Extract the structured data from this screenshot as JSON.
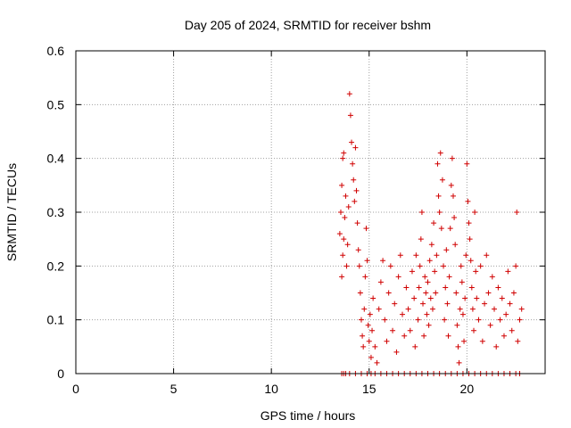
{
  "chart_data": {
    "type": "scatter",
    "title": "Day 205 of 2024, SRMTID for receiver bshm",
    "xlabel": "GPS time / hours",
    "ylabel": "SRMTID / TECUs",
    "xlim": [
      0,
      24
    ],
    "ylim": [
      0,
      0.6
    ],
    "xticks": [
      0,
      5,
      10,
      15,
      20
    ],
    "yticks": [
      0,
      0.1,
      0.2,
      0.3,
      0.4,
      0.5,
      0.6
    ],
    "xtick_labels": [
      "0",
      "5",
      "10",
      "15",
      "20"
    ],
    "ytick_labels": [
      "0",
      "0.1",
      "0.2",
      "0.3",
      "0.4",
      "0.5",
      "0.6"
    ],
    "grid": true,
    "marker": "+",
    "series": [
      {
        "name": "SRMTID",
        "color": "#d00000",
        "points": [
          [
            13.6,
            0.0
          ],
          [
            13.7,
            0.0
          ],
          [
            13.8,
            0.0
          ],
          [
            14.0,
            0.0
          ],
          [
            14.3,
            0.0
          ],
          [
            14.6,
            0.0
          ],
          [
            14.9,
            0.0
          ],
          [
            15.1,
            0.0
          ],
          [
            15.3,
            0.0
          ],
          [
            15.6,
            0.0
          ],
          [
            15.9,
            0.0
          ],
          [
            16.2,
            0.0
          ],
          [
            16.5,
            0.0
          ],
          [
            16.8,
            0.0
          ],
          [
            17.1,
            0.0
          ],
          [
            17.4,
            0.0
          ],
          [
            17.7,
            0.0
          ],
          [
            18.0,
            0.0
          ],
          [
            18.3,
            0.0
          ],
          [
            18.6,
            0.0
          ],
          [
            18.9,
            0.0
          ],
          [
            19.2,
            0.0
          ],
          [
            19.5,
            0.0
          ],
          [
            19.8,
            0.0
          ],
          [
            20.1,
            0.0
          ],
          [
            20.4,
            0.0
          ],
          [
            20.7,
            0.0
          ],
          [
            21.0,
            0.0
          ],
          [
            21.3,
            0.0
          ],
          [
            21.6,
            0.0
          ],
          [
            21.9,
            0.0
          ],
          [
            22.2,
            0.0
          ],
          [
            22.5,
            0.0
          ],
          [
            22.7,
            0.0
          ],
          [
            13.5,
            0.26
          ],
          [
            13.55,
            0.3
          ],
          [
            13.6,
            0.35
          ],
          [
            13.65,
            0.4
          ],
          [
            13.7,
            0.41
          ],
          [
            13.6,
            0.18
          ],
          [
            13.65,
            0.22
          ],
          [
            13.7,
            0.25
          ],
          [
            13.75,
            0.29
          ],
          [
            13.8,
            0.33
          ],
          [
            13.85,
            0.2
          ],
          [
            13.9,
            0.24
          ],
          [
            13.95,
            0.31
          ],
          [
            14.0,
            0.52
          ],
          [
            14.05,
            0.48
          ],
          [
            14.1,
            0.43
          ],
          [
            14.15,
            0.39
          ],
          [
            14.2,
            0.36
          ],
          [
            14.25,
            0.32
          ],
          [
            14.3,
            0.42
          ],
          [
            14.35,
            0.34
          ],
          [
            14.4,
            0.28
          ],
          [
            14.45,
            0.23
          ],
          [
            14.5,
            0.2
          ],
          [
            14.55,
            0.15
          ],
          [
            14.6,
            0.1
          ],
          [
            14.65,
            0.07
          ],
          [
            14.7,
            0.05
          ],
          [
            14.75,
            0.12
          ],
          [
            14.8,
            0.18
          ],
          [
            14.85,
            0.27
          ],
          [
            14.9,
            0.21
          ],
          [
            14.95,
            0.09
          ],
          [
            15.0,
            0.06
          ],
          [
            15.05,
            0.11
          ],
          [
            15.1,
            0.03
          ],
          [
            15.15,
            0.08
          ],
          [
            15.2,
            0.14
          ],
          [
            15.3,
            0.05
          ],
          [
            15.4,
            0.02
          ],
          [
            15.5,
            0.12
          ],
          [
            15.6,
            0.17
          ],
          [
            15.7,
            0.21
          ],
          [
            15.8,
            0.1
          ],
          [
            15.9,
            0.06
          ],
          [
            16.0,
            0.15
          ],
          [
            16.1,
            0.2
          ],
          [
            16.2,
            0.08
          ],
          [
            16.3,
            0.13
          ],
          [
            16.4,
            0.04
          ],
          [
            16.5,
            0.18
          ],
          [
            16.6,
            0.22
          ],
          [
            16.7,
            0.11
          ],
          [
            16.8,
            0.07
          ],
          [
            16.9,
            0.16
          ],
          [
            17.0,
            0.12
          ],
          [
            17.1,
            0.08
          ],
          [
            17.2,
            0.19
          ],
          [
            17.3,
            0.14
          ],
          [
            17.35,
            0.05
          ],
          [
            17.4,
            0.22
          ],
          [
            17.5,
            0.1
          ],
          [
            17.55,
            0.16
          ],
          [
            17.6,
            0.2
          ],
          [
            17.65,
            0.25
          ],
          [
            17.7,
            0.3
          ],
          [
            17.75,
            0.13
          ],
          [
            17.8,
            0.07
          ],
          [
            17.85,
            0.18
          ],
          [
            17.9,
            0.15
          ],
          [
            17.95,
            0.11
          ],
          [
            18.0,
            0.17
          ],
          [
            18.05,
            0.09
          ],
          [
            18.1,
            0.21
          ],
          [
            18.15,
            0.14
          ],
          [
            18.2,
            0.24
          ],
          [
            18.25,
            0.12
          ],
          [
            18.3,
            0.28
          ],
          [
            18.35,
            0.19
          ],
          [
            18.4,
            0.15
          ],
          [
            18.45,
            0.22
          ],
          [
            18.5,
            0.39
          ],
          [
            18.55,
            0.33
          ],
          [
            18.6,
            0.3
          ],
          [
            18.65,
            0.41
          ],
          [
            18.7,
            0.27
          ],
          [
            18.75,
            0.36
          ],
          [
            18.8,
            0.2
          ],
          [
            18.85,
            0.1
          ],
          [
            18.9,
            0.16
          ],
          [
            18.95,
            0.23
          ],
          [
            19.0,
            0.13
          ],
          [
            19.05,
            0.07
          ],
          [
            19.1,
            0.18
          ],
          [
            19.15,
            0.27
          ],
          [
            19.2,
            0.35
          ],
          [
            19.25,
            0.4
          ],
          [
            19.3,
            0.33
          ],
          [
            19.35,
            0.29
          ],
          [
            19.4,
            0.24
          ],
          [
            19.45,
            0.15
          ],
          [
            19.5,
            0.09
          ],
          [
            19.55,
            0.05
          ],
          [
            19.6,
            0.02
          ],
          [
            19.65,
            0.12
          ],
          [
            19.7,
            0.2
          ],
          [
            19.75,
            0.17
          ],
          [
            19.8,
            0.11
          ],
          [
            19.85,
            0.06
          ],
          [
            19.9,
            0.14
          ],
          [
            19.95,
            0.22
          ],
          [
            20.0,
            0.39
          ],
          [
            20.05,
            0.32
          ],
          [
            20.1,
            0.28
          ],
          [
            20.15,
            0.25
          ],
          [
            20.2,
            0.21
          ],
          [
            20.25,
            0.16
          ],
          [
            20.3,
            0.12
          ],
          [
            20.35,
            0.08
          ],
          [
            20.4,
            0.3
          ],
          [
            20.45,
            0.19
          ],
          [
            20.5,
            0.14
          ],
          [
            20.6,
            0.1
          ],
          [
            20.7,
            0.2
          ],
          [
            20.8,
            0.06
          ],
          [
            20.9,
            0.13
          ],
          [
            21.0,
            0.22
          ],
          [
            21.1,
            0.15
          ],
          [
            21.2,
            0.09
          ],
          [
            21.3,
            0.18
          ],
          [
            21.4,
            0.12
          ],
          [
            21.5,
            0.05
          ],
          [
            21.6,
            0.16
          ],
          [
            21.7,
            0.1
          ],
          [
            21.8,
            0.14
          ],
          [
            21.9,
            0.07
          ],
          [
            22.0,
            0.11
          ],
          [
            22.1,
            0.19
          ],
          [
            22.2,
            0.13
          ],
          [
            22.3,
            0.08
          ],
          [
            22.4,
            0.15
          ],
          [
            22.5,
            0.2
          ],
          [
            22.55,
            0.3
          ],
          [
            22.6,
            0.06
          ],
          [
            22.7,
            0.1
          ],
          [
            22.8,
            0.12
          ]
        ]
      }
    ]
  }
}
